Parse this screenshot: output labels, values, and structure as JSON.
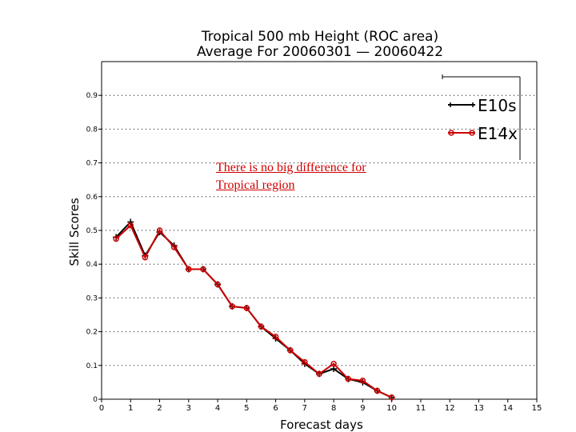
{
  "chart_data": {
    "type": "line",
    "title": "Tropical 500 mb Height (ROC area)",
    "subtitle": "Average For 20060301 — 20060422",
    "xlabel": "Forecast days",
    "ylabel": "Skill Scores",
    "xlim": [
      0,
      15
    ],
    "ylim": [
      0,
      1
    ],
    "xticks": [
      "0",
      "1",
      "2",
      "3",
      "4",
      "5",
      "6",
      "7",
      "8",
      "9",
      "10",
      "11",
      "12",
      "13",
      "14",
      "15"
    ],
    "yticks": [
      "0",
      "0.1",
      "0.2",
      "0.3",
      "0.4",
      "0.5",
      "0.6",
      "0.7",
      "0.8",
      "0.9"
    ],
    "grid": true,
    "legend_position": "top-right",
    "series": [
      {
        "name": "E10s",
        "color": "#000000",
        "marker": "plus",
        "x": [
          0.5,
          1.0,
          1.5,
          2.0,
          2.5,
          3.0,
          3.5,
          4.0,
          4.5,
          5.0,
          5.5,
          6.0,
          6.5,
          7.0,
          7.5,
          8.0,
          8.5,
          9.0,
          9.5,
          10.0
        ],
        "values": [
          0.48,
          0.525,
          0.425,
          0.495,
          0.455,
          0.385,
          0.385,
          0.34,
          0.275,
          0.27,
          0.215,
          0.18,
          0.145,
          0.105,
          0.075,
          0.09,
          0.06,
          0.05,
          0.025,
          0.005
        ]
      },
      {
        "name": "E14x",
        "color": "#cc0000",
        "marker": "circle",
        "x": [
          0.5,
          1.0,
          1.5,
          2.0,
          2.5,
          3.0,
          3.5,
          4.0,
          4.5,
          5.0,
          5.5,
          6.0,
          6.5,
          7.0,
          7.5,
          8.0,
          8.5,
          9.0,
          9.5,
          10.0
        ],
        "values": [
          0.475,
          0.515,
          0.42,
          0.5,
          0.45,
          0.385,
          0.385,
          0.34,
          0.275,
          0.27,
          0.215,
          0.185,
          0.145,
          0.11,
          0.075,
          0.105,
          0.06,
          0.055,
          0.025,
          0.005
        ]
      }
    ],
    "annotation": [
      "There is no big difference for",
      "Tropical region"
    ]
  }
}
